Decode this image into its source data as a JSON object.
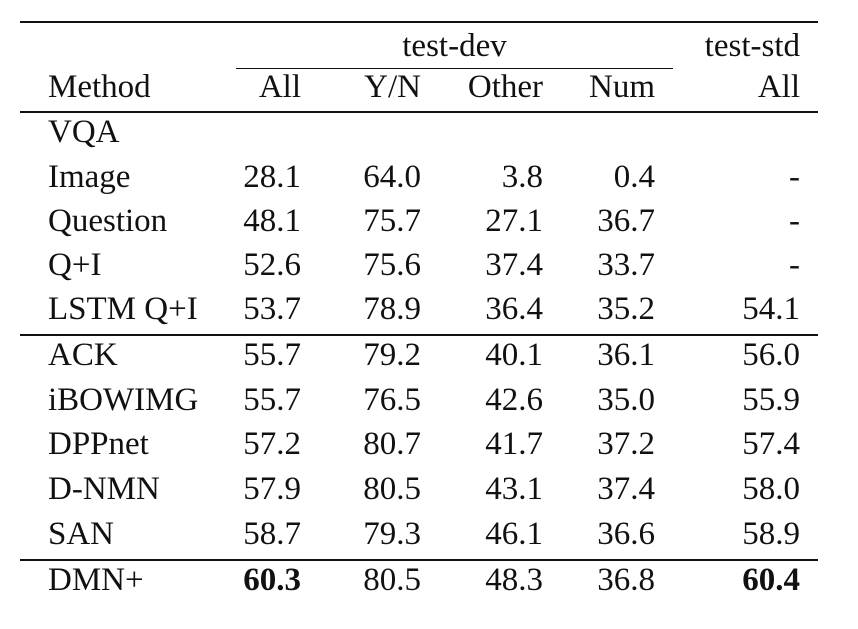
{
  "table": {
    "group_headers": {
      "test_dev": "test-dev",
      "test_std": "test-std"
    },
    "columns": [
      "Method",
      "All",
      "Y/N",
      "Other",
      "Num",
      "All"
    ],
    "section_label": "VQA",
    "rows": [
      {
        "method": "Image",
        "values": [
          "28.1",
          "64.0",
          "3.8",
          "0.4",
          "-"
        ],
        "bold": [
          false,
          false,
          false,
          false,
          false
        ]
      },
      {
        "method": "Question",
        "values": [
          "48.1",
          "75.7",
          "27.1",
          "36.7",
          "-"
        ],
        "bold": [
          false,
          false,
          false,
          false,
          false
        ]
      },
      {
        "method": "Q+I",
        "values": [
          "52.6",
          "75.6",
          "37.4",
          "33.7",
          "-"
        ],
        "bold": [
          false,
          false,
          false,
          false,
          false
        ]
      },
      {
        "method": "LSTM Q+I",
        "values": [
          "53.7",
          "78.9",
          "36.4",
          "35.2",
          "54.1"
        ],
        "bold": [
          false,
          false,
          false,
          false,
          false
        ]
      },
      {
        "method": "ACK",
        "values": [
          "55.7",
          "79.2",
          "40.1",
          "36.1",
          "56.0"
        ],
        "bold": [
          false,
          false,
          false,
          false,
          false
        ]
      },
      {
        "method": "iBOWIMG",
        "values": [
          "55.7",
          "76.5",
          "42.6",
          "35.0",
          "55.9"
        ],
        "bold": [
          false,
          false,
          false,
          false,
          false
        ]
      },
      {
        "method": "DPPnet",
        "values": [
          "57.2",
          "80.7",
          "41.7",
          "37.2",
          "57.4"
        ],
        "bold": [
          false,
          false,
          false,
          false,
          false
        ]
      },
      {
        "method": "D-NMN",
        "values": [
          "57.9",
          "80.5",
          "43.1",
          "37.4",
          "58.0"
        ],
        "bold": [
          false,
          false,
          false,
          false,
          false
        ]
      },
      {
        "method": "SAN",
        "values": [
          "58.7",
          "79.3",
          "46.1",
          "36.6",
          "58.9"
        ],
        "bold": [
          false,
          false,
          false,
          false,
          false
        ]
      },
      {
        "method": "DMN+",
        "values": [
          "60.3",
          "80.5",
          "48.3",
          "36.8",
          "60.4"
        ],
        "bold": [
          true,
          false,
          false,
          false,
          true
        ]
      }
    ]
  }
}
